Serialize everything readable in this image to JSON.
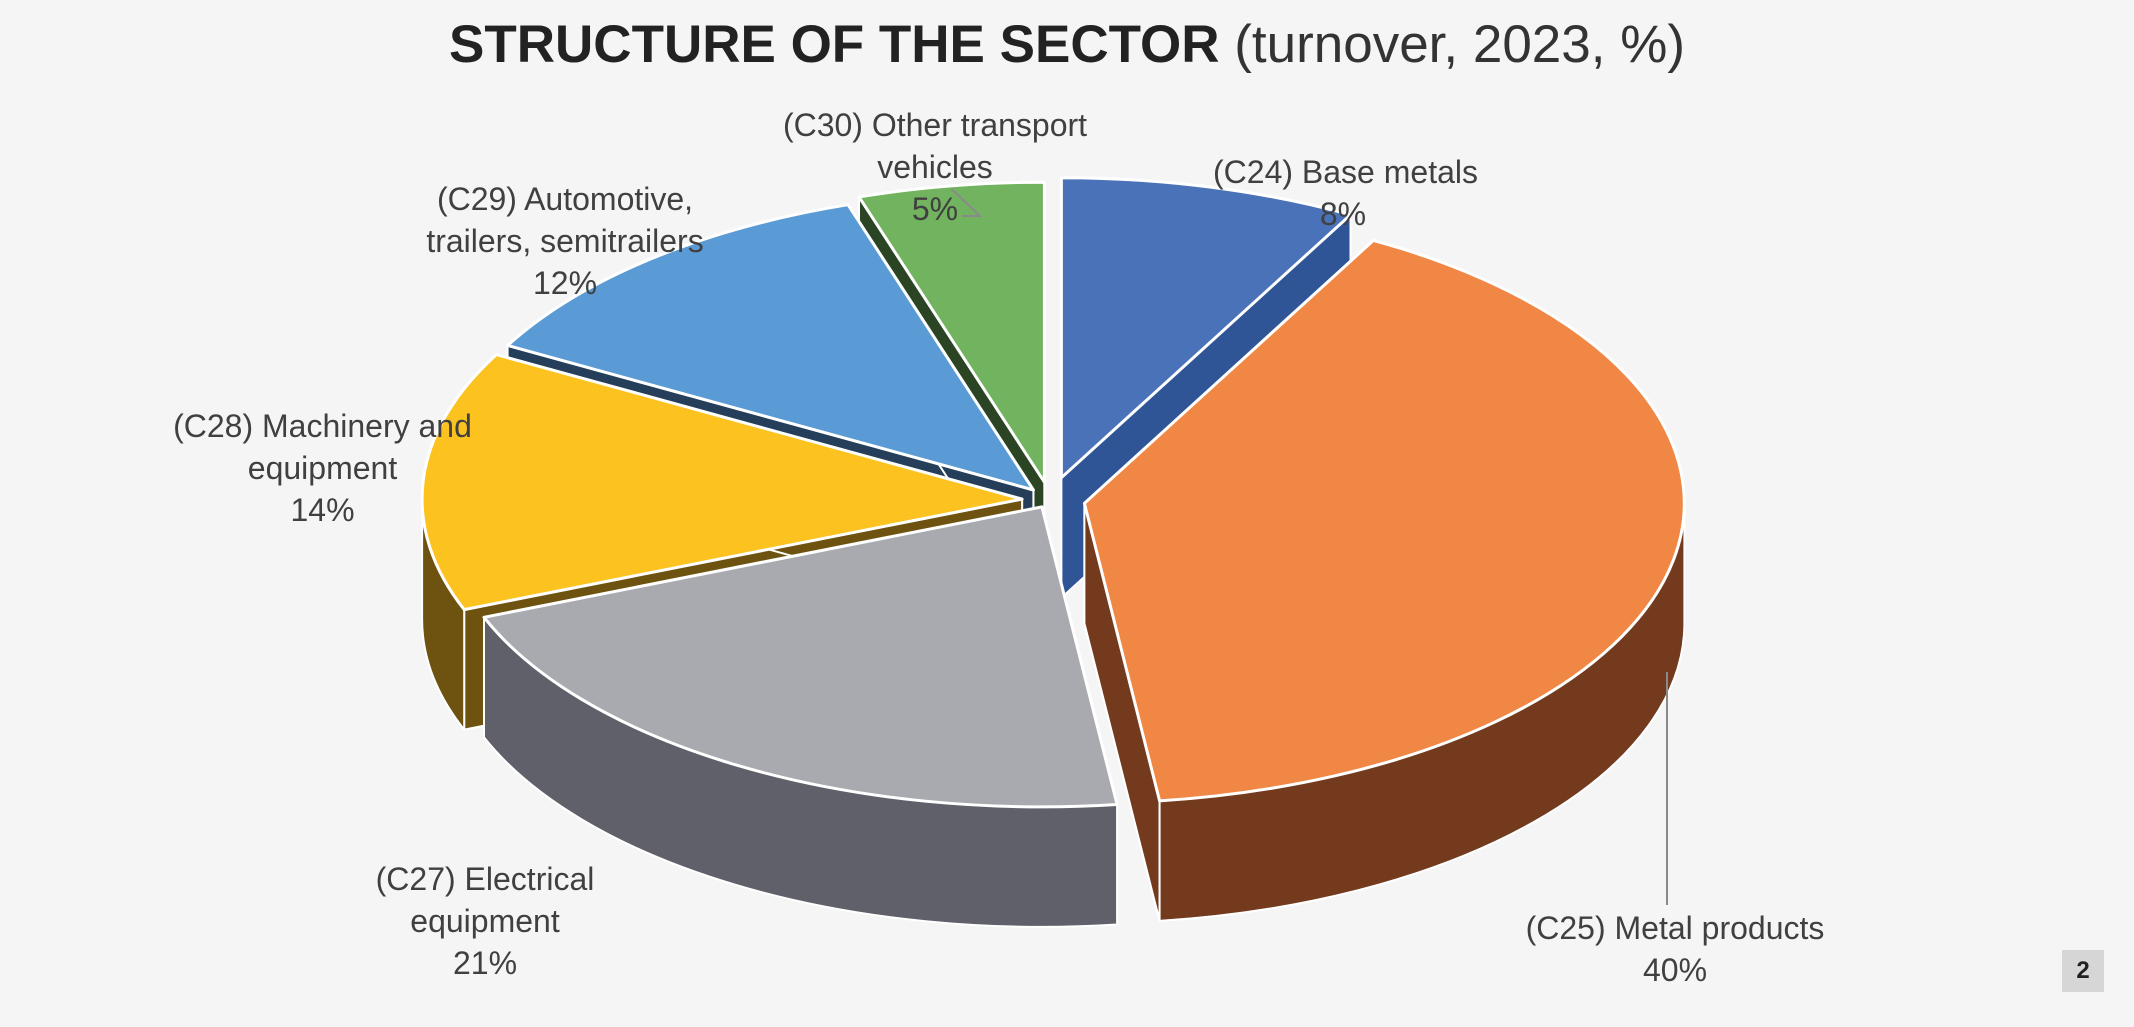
{
  "title": {
    "bold": "STRUCTURE OF THE SECTOR",
    "light": "(turnover, 2023, %)"
  },
  "page_number": "2",
  "chart_data": {
    "type": "pie",
    "three_d": true,
    "exploded": true,
    "legend": "none",
    "slices": [
      {
        "label": "(C24) Base metals",
        "value": 8,
        "value_text": "8%",
        "top": "#4a72b8",
        "side": "#2f5597"
      },
      {
        "label": "(C25) Metal products",
        "value": 40,
        "value_text": "40%",
        "top": "#f08745",
        "side": "#733a1e"
      },
      {
        "label": "(C27) Electrical equipment",
        "value": 21,
        "value_text": "21%",
        "top": "#a9a9b0",
        "side": "#5f6069"
      },
      {
        "label": "(C28) Machinery and equipment",
        "value": 14,
        "value_text": "14%",
        "top": "#fcc21f",
        "side": "#6e5210"
      },
      {
        "label": "(C29) Automotive, trailers, semitrailers",
        "value": 12,
        "value_text": "12%",
        "top": "#5b9bd5",
        "side": "#253f5a"
      },
      {
        "label": "(C30) Other transport vehicles",
        "value": 5,
        "value_text": "5%",
        "top": "#72b35f",
        "side": "#2a4424"
      }
    ]
  }
}
